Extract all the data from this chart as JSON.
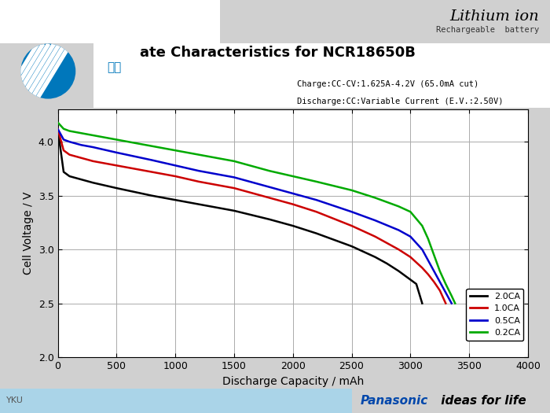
{
  "title_partial": "ate Characteristics for NCR18650B",
  "subtitle_charge": "Charge:CC-CV:1.625A-4.2V (65.0mA cut)",
  "subtitle_discharge": "Discharge:CC:Variable Current (E.V.:2.50V)",
  "xlabel": "Discharge Capacity / mAh",
  "ylabel": "Cell Voltage / V",
  "xlim": [
    0,
    4000
  ],
  "ylim": [
    2.0,
    4.3
  ],
  "yticks": [
    2.0,
    2.5,
    3.0,
    3.5,
    4.0
  ],
  "xticks": [
    0,
    500,
    1000,
    1500,
    2000,
    2500,
    3000,
    3500,
    4000
  ],
  "grid_color": "#aaaaaa",
  "curves": {
    "2.0CA": {
      "color": "#000000",
      "x": [
        0,
        50,
        100,
        200,
        300,
        500,
        800,
        1000,
        1200,
        1500,
        1800,
        2000,
        2200,
        2500,
        2700,
        2800,
        2900,
        2950,
        3000,
        3050,
        3100
      ],
      "y": [
        4.12,
        3.72,
        3.68,
        3.65,
        3.62,
        3.57,
        3.5,
        3.46,
        3.42,
        3.36,
        3.28,
        3.22,
        3.15,
        3.03,
        2.93,
        2.87,
        2.8,
        2.76,
        2.72,
        2.68,
        2.5
      ]
    },
    "1.0CA": {
      "color": "#cc0000",
      "x": [
        0,
        50,
        100,
        200,
        300,
        500,
        800,
        1000,
        1200,
        1500,
        1800,
        2000,
        2200,
        2500,
        2700,
        2900,
        3000,
        3100,
        3150,
        3200,
        3250,
        3300
      ],
      "y": [
        4.12,
        3.92,
        3.88,
        3.85,
        3.82,
        3.78,
        3.72,
        3.68,
        3.63,
        3.57,
        3.48,
        3.42,
        3.35,
        3.22,
        3.12,
        3.0,
        2.93,
        2.83,
        2.77,
        2.7,
        2.62,
        2.5
      ]
    },
    "0.5CA": {
      "color": "#0000cc",
      "x": [
        0,
        50,
        100,
        200,
        300,
        500,
        800,
        1000,
        1200,
        1500,
        1800,
        2000,
        2200,
        2500,
        2700,
        2900,
        3000,
        3100,
        3150,
        3200,
        3250,
        3300,
        3350
      ],
      "y": [
        4.12,
        4.02,
        4.0,
        3.97,
        3.95,
        3.9,
        3.83,
        3.78,
        3.73,
        3.67,
        3.58,
        3.52,
        3.46,
        3.35,
        3.27,
        3.18,
        3.12,
        3.0,
        2.9,
        2.8,
        2.7,
        2.6,
        2.5
      ]
    },
    "0.2CA": {
      "color": "#00aa00",
      "x": [
        0,
        50,
        100,
        200,
        300,
        500,
        800,
        1000,
        1200,
        1500,
        1800,
        2000,
        2200,
        2500,
        2700,
        2900,
        3000,
        3100,
        3150,
        3200,
        3250,
        3300,
        3350,
        3380
      ],
      "y": [
        4.18,
        4.12,
        4.1,
        4.08,
        4.06,
        4.02,
        3.96,
        3.92,
        3.88,
        3.82,
        3.73,
        3.68,
        3.63,
        3.55,
        3.48,
        3.4,
        3.35,
        3.22,
        3.1,
        2.95,
        2.8,
        2.68,
        2.57,
        2.5
      ]
    }
  },
  "legend_labels": [
    "2.0CA",
    "1.0CA",
    "0.5CA",
    "0.2CA"
  ],
  "legend_colors": [
    "#000000",
    "#cc0000",
    "#0000cc",
    "#00aa00"
  ],
  "panasonic_blue": "#0047AB",
  "lithium_ion_text": "Lithium ion",
  "rechargeable_text": "Rechargeable  battery",
  "logo_color": "#0077bb",
  "chinese_text": "神對",
  "fig_bg": "#d0d0d0",
  "header_bg": "#d0d0d0",
  "bottom_strip_color": "#aad4e8"
}
